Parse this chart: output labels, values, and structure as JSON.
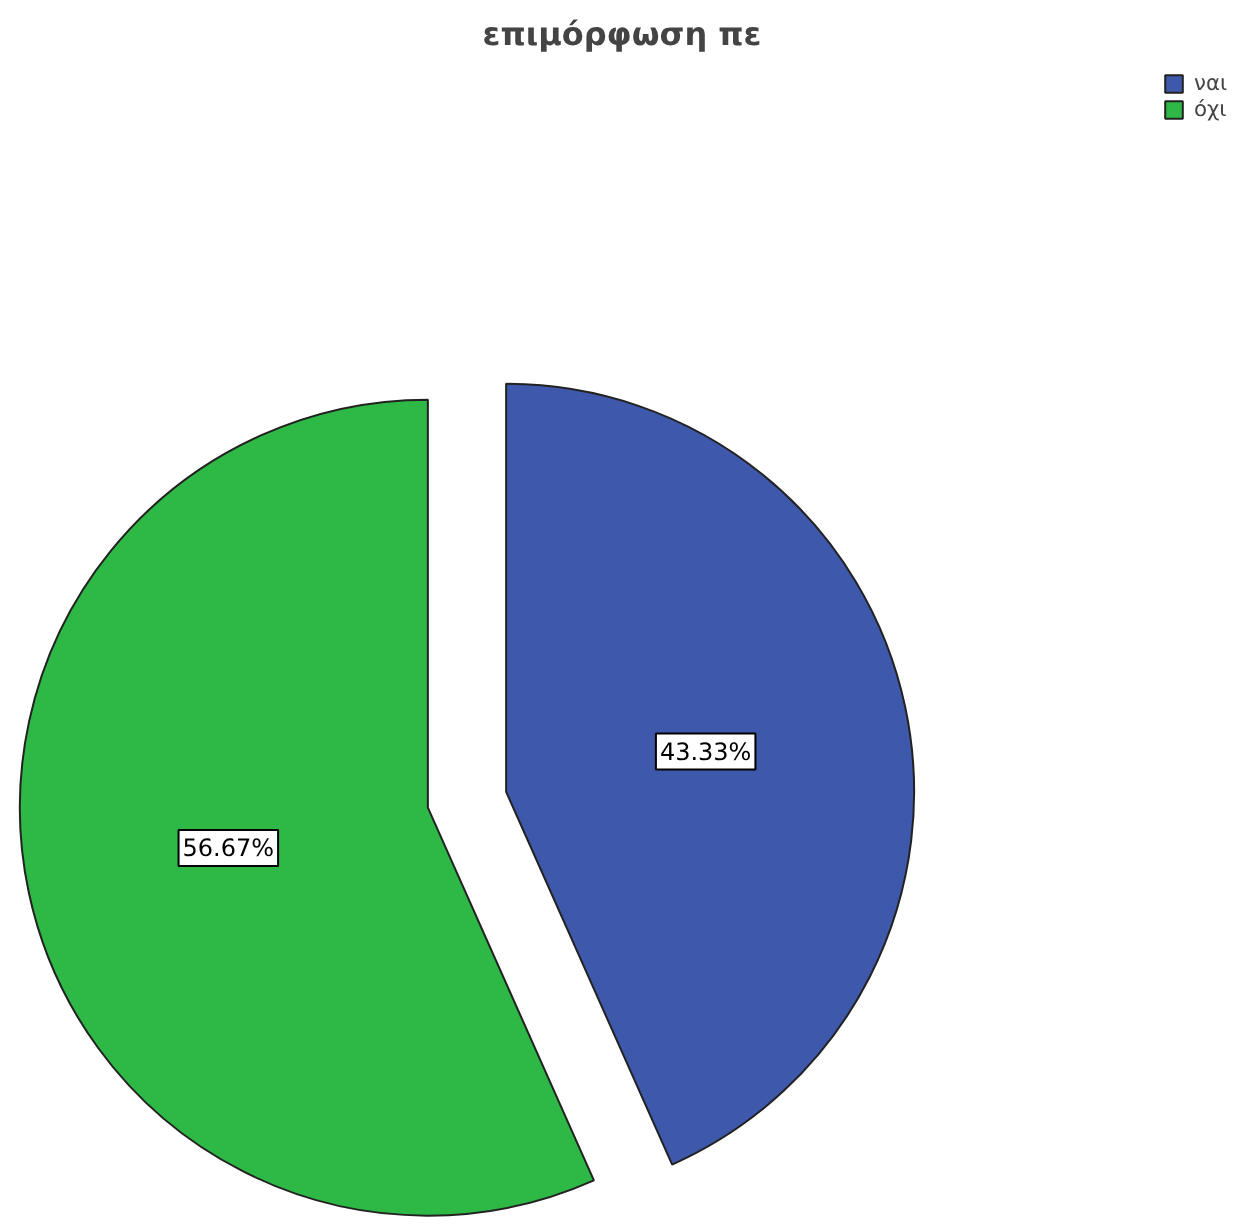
{
  "chart_data": {
    "type": "pie",
    "title": "επιμόρφωση πε",
    "categories": [
      "ναι",
      "όχι"
    ],
    "values": [
      43.33,
      56.67
    ],
    "colors": [
      "#3e58ac",
      "#2eb845"
    ],
    "value_labels": [
      "43.33%",
      "56.67%"
    ],
    "legend": "top right"
  }
}
